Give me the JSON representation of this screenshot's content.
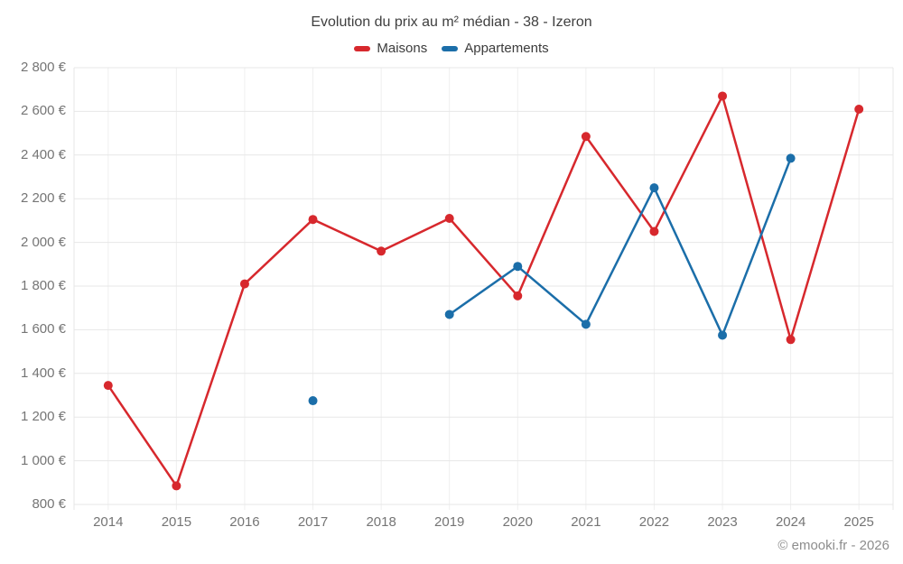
{
  "title": "Evolution du prix au m² médian - 38 - Izeron",
  "footer": "© emooki.fr - 2026",
  "chart_data": {
    "type": "line",
    "title": "Evolution du prix au m² médian - 38 - Izeron",
    "categories": [
      "2014",
      "2015",
      "2016",
      "2017",
      "2018",
      "2019",
      "2020",
      "2021",
      "2022",
      "2023",
      "2024",
      "2025"
    ],
    "series": [
      {
        "name": "Maisons",
        "color": "#d7282d",
        "values": [
          1345,
          885,
          1810,
          2105,
          1960,
          2110,
          1755,
          2485,
          2050,
          2670,
          1555,
          2610
        ]
      },
      {
        "name": "Appartements",
        "color": "#1b6ea9",
        "values": [
          null,
          null,
          null,
          1275,
          null,
          1670,
          1890,
          1625,
          2250,
          1575,
          2385,
          null
        ]
      }
    ],
    "ylim": [
      800,
      2800
    ],
    "ytick_step": 200,
    "ytick_labels": [
      "800 €",
      "1 000 €",
      "1 200 €",
      "1 400 €",
      "1 600 €",
      "1 800 €",
      "2 000 €",
      "2 200 €",
      "2 400 €",
      "2 600 €",
      "2 800 €"
    ],
    "xlabel": "",
    "ylabel": "",
    "grid": true,
    "legend_position": "top"
  },
  "colors": {
    "background": "#ffffff",
    "grid_horizontal": "#e7e7e7",
    "grid_vertical": "#efefef",
    "tick_label": "#757575",
    "title_text": "#3f3f3f",
    "footer_text": "#8d8d8d"
  }
}
